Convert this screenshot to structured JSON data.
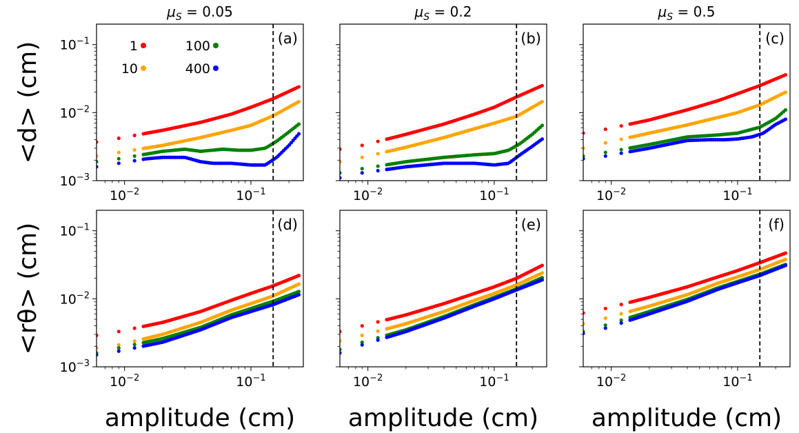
{
  "chart_data": {
    "type": "scatter",
    "layout": "3 columns x 2 rows of small multiples",
    "x_scale": "log",
    "y_scale": "log",
    "xlabel": "amplitude (cm)",
    "ylabels": [
      "<d> (cm)",
      "<rθ> (cm)"
    ],
    "xlim": [
      0.006,
      0.26
    ],
    "ylim": [
      0.001,
      0.2
    ],
    "x_ticks": [
      {
        "value": 0.01,
        "label_base": "10",
        "label_exp": "−2"
      },
      {
        "value": 0.1,
        "label_base": "10",
        "label_exp": "−1"
      }
    ],
    "y_ticks": [
      {
        "value": 0.001,
        "label_base": "10",
        "label_exp": "−3"
      },
      {
        "value": 0.01,
        "label_base": "10",
        "label_exp": "−2"
      },
      {
        "value": 0.1,
        "label_base": "10",
        "label_exp": "−1"
      }
    ],
    "column_titles": [
      {
        "sym": "μ",
        "sub": "S",
        "value": " = 0.05"
      },
      {
        "sym": "μ",
        "sub": "S",
        "value": " = 0.2"
      },
      {
        "sym": "μ",
        "sub": "S",
        "value": " = 0.5"
      }
    ],
    "vline_x": 0.15,
    "legend": {
      "placement": "upper-left of panel (a)",
      "entries": [
        {
          "label": "1",
          "color": "#ff0000"
        },
        {
          "label": "10",
          "color": "#ffa500"
        },
        {
          "label": "100",
          "color": "#008000"
        },
        {
          "label": "400",
          "color": "#0000ff"
        }
      ]
    },
    "series_colors": {
      "1": "#ff0000",
      "10": "#ffa500",
      "100": "#008000",
      "400": "#0000ff"
    },
    "panels": [
      {
        "label": "(a)",
        "series": [
          {
            "legend": "1",
            "x": [
              0.006,
              0.009,
              0.02,
              0.04,
              0.07,
              0.1,
              0.15,
              0.24
            ],
            "y": [
              0.0037,
              0.0042,
              0.0055,
              0.0072,
              0.0095,
              0.012,
              0.016,
              0.024
            ]
          },
          {
            "legend": "10",
            "x": [
              0.006,
              0.009,
              0.02,
              0.04,
              0.07,
              0.1,
              0.15,
              0.24
            ],
            "y": [
              0.0023,
              0.0026,
              0.0033,
              0.0043,
              0.0055,
              0.0065,
              0.009,
              0.0145
            ]
          },
          {
            "legend": "100",
            "x": [
              0.006,
              0.009,
              0.02,
              0.03,
              0.04,
              0.06,
              0.08,
              0.1,
              0.13,
              0.16,
              0.2,
              0.24
            ],
            "y": [
              0.0019,
              0.0021,
              0.0027,
              0.0029,
              0.0027,
              0.0029,
              0.0028,
              0.0028,
              0.003,
              0.0038,
              0.0052,
              0.0068
            ]
          },
          {
            "legend": "400",
            "x": [
              0.006,
              0.009,
              0.015,
              0.02,
              0.03,
              0.04,
              0.05,
              0.07,
              0.1,
              0.13,
              0.16,
              0.2,
              0.24
            ],
            "y": [
              0.0016,
              0.0018,
              0.0021,
              0.0022,
              0.0022,
              0.0019,
              0.0018,
              0.0018,
              0.0017,
              0.0017,
              0.0022,
              0.0033,
              0.0049
            ]
          }
        ]
      },
      {
        "label": "(b)",
        "series": [
          {
            "legend": "1",
            "x": [
              0.006,
              0.009,
              0.02,
              0.04,
              0.07,
              0.1,
              0.15,
              0.24
            ],
            "y": [
              0.0029,
              0.0033,
              0.0048,
              0.0068,
              0.0095,
              0.012,
              0.017,
              0.025
            ]
          },
          {
            "legend": "10",
            "x": [
              0.006,
              0.009,
              0.02,
              0.04,
              0.07,
              0.1,
              0.15,
              0.24
            ],
            "y": [
              0.0019,
              0.0022,
              0.0031,
              0.0043,
              0.0058,
              0.007,
              0.0088,
              0.0145
            ]
          },
          {
            "legend": "100",
            "x": [
              0.006,
              0.009,
              0.02,
              0.04,
              0.07,
              0.1,
              0.13,
              0.16,
              0.2,
              0.24
            ],
            "y": [
              0.0013,
              0.0015,
              0.0019,
              0.0022,
              0.0024,
              0.0025,
              0.0028,
              0.0035,
              0.0048,
              0.0065
            ]
          },
          {
            "legend": "400",
            "x": [
              0.006,
              0.009,
              0.02,
              0.04,
              0.07,
              0.1,
              0.13,
              0.16,
              0.2,
              0.24
            ],
            "y": [
              0.0011,
              0.0013,
              0.0016,
              0.0018,
              0.0018,
              0.0017,
              0.0018,
              0.0024,
              0.0032,
              0.0041
            ]
          }
        ]
      },
      {
        "label": "(c)",
        "series": [
          {
            "legend": "1",
            "x": [
              0.006,
              0.009,
              0.02,
              0.04,
              0.07,
              0.1,
              0.15,
              0.24
            ],
            "y": [
              0.005,
              0.0057,
              0.0078,
              0.011,
              0.015,
              0.019,
              0.025,
              0.036
            ]
          },
          {
            "legend": "10",
            "x": [
              0.006,
              0.009,
              0.02,
              0.04,
              0.07,
              0.1,
              0.15,
              0.24
            ],
            "y": [
              0.003,
              0.0036,
              0.005,
              0.0066,
              0.0085,
              0.01,
              0.013,
              0.02
            ]
          },
          {
            "legend": "100",
            "x": [
              0.006,
              0.009,
              0.02,
              0.04,
              0.07,
              0.1,
              0.15,
              0.2,
              0.24
            ],
            "y": [
              0.0023,
              0.0026,
              0.0034,
              0.0044,
              0.0047,
              0.005,
              0.0061,
              0.0082,
              0.011
            ]
          },
          {
            "legend": "400",
            "x": [
              0.006,
              0.009,
              0.02,
              0.04,
              0.06,
              0.08,
              0.1,
              0.13,
              0.16,
              0.2,
              0.24
            ],
            "y": [
              0.0021,
              0.0023,
              0.003,
              0.0039,
              0.004,
              0.004,
              0.0041,
              0.0044,
              0.005,
              0.0067,
              0.008
            ]
          }
        ]
      },
      {
        "label": "(d)",
        "series": [
          {
            "legend": "1",
            "x": [
              0.006,
              0.009,
              0.02,
              0.04,
              0.07,
              0.1,
              0.15,
              0.24
            ],
            "y": [
              0.0029,
              0.0033,
              0.0045,
              0.0065,
              0.0095,
              0.012,
              0.0155,
              0.022
            ]
          },
          {
            "legend": "10",
            "x": [
              0.006,
              0.009,
              0.02,
              0.04,
              0.07,
              0.1,
              0.15,
              0.24
            ],
            "y": [
              0.0019,
              0.0021,
              0.003,
              0.0045,
              0.0068,
              0.0085,
              0.011,
              0.0165
            ]
          },
          {
            "legend": "100",
            "x": [
              0.006,
              0.009,
              0.02,
              0.04,
              0.07,
              0.1,
              0.15,
              0.24
            ],
            "y": [
              0.0016,
              0.0019,
              0.0026,
              0.0038,
              0.0058,
              0.0072,
              0.0092,
              0.0128
            ]
          },
          {
            "legend": "400",
            "x": [
              0.006,
              0.009,
              0.02,
              0.04,
              0.07,
              0.1,
              0.15,
              0.24
            ],
            "y": [
              0.0015,
              0.0017,
              0.0023,
              0.0035,
              0.0053,
              0.0065,
              0.0082,
              0.0115
            ]
          }
        ]
      },
      {
        "label": "(e)",
        "series": [
          {
            "legend": "1",
            "x": [
              0.006,
              0.009,
              0.02,
              0.04,
              0.07,
              0.1,
              0.15,
              0.24
            ],
            "y": [
              0.0033,
              0.004,
              0.0058,
              0.0085,
              0.012,
              0.015,
              0.02,
              0.031
            ]
          },
          {
            "legend": "10",
            "x": [
              0.006,
              0.009,
              0.02,
              0.04,
              0.07,
              0.1,
              0.15,
              0.24
            ],
            "y": [
              0.0024,
              0.0029,
              0.0043,
              0.0065,
              0.0095,
              0.012,
              0.016,
              0.024
            ]
          },
          {
            "legend": "100",
            "x": [
              0.006,
              0.009,
              0.02,
              0.04,
              0.07,
              0.1,
              0.15,
              0.24
            ],
            "y": [
              0.0018,
              0.0023,
              0.0035,
              0.0055,
              0.0082,
              0.0105,
              0.014,
              0.0205
            ]
          },
          {
            "legend": "400",
            "x": [
              0.006,
              0.009,
              0.02,
              0.04,
              0.07,
              0.1,
              0.15,
              0.24
            ],
            "y": [
              0.0016,
              0.0021,
              0.0033,
              0.0052,
              0.0078,
              0.01,
              0.0135,
              0.019
            ]
          }
        ]
      },
      {
        "label": "(f)",
        "series": [
          {
            "legend": "1",
            "x": [
              0.006,
              0.009,
              0.02,
              0.04,
              0.07,
              0.1,
              0.15,
              0.24
            ],
            "y": [
              0.0062,
              0.0072,
              0.0105,
              0.015,
              0.021,
              0.026,
              0.034,
              0.047
            ]
          },
          {
            "legend": "10",
            "x": [
              0.006,
              0.009,
              0.02,
              0.04,
              0.07,
              0.1,
              0.15,
              0.24
            ],
            "y": [
              0.0043,
              0.0052,
              0.0078,
              0.0115,
              0.017,
              0.021,
              0.027,
              0.038
            ]
          },
          {
            "legend": "100",
            "x": [
              0.006,
              0.009,
              0.02,
              0.04,
              0.07,
              0.1,
              0.15,
              0.24
            ],
            "y": [
              0.0033,
              0.0041,
              0.0065,
              0.0098,
              0.0145,
              0.018,
              0.023,
              0.032
            ]
          },
          {
            "legend": "400",
            "x": [
              0.006,
              0.009,
              0.02,
              0.04,
              0.07,
              0.1,
              0.15,
              0.24
            ],
            "y": [
              0.0031,
              0.0037,
              0.006,
              0.0092,
              0.0138,
              0.0172,
              0.022,
              0.031
            ]
          }
        ]
      }
    ]
  }
}
